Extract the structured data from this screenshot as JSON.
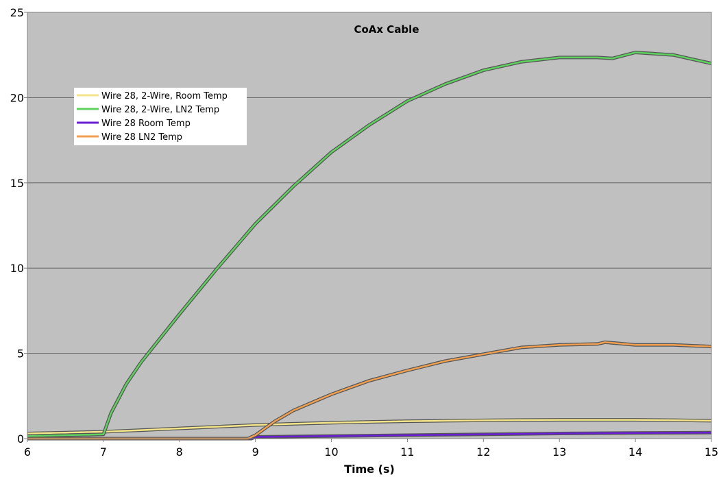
{
  "chart_data": {
    "type": "line",
    "title": "CoAx Cable",
    "xlabel": "Time (s)",
    "ylabel": "",
    "xlim": [
      6,
      15
    ],
    "ylim": [
      0,
      25
    ],
    "x_ticks": [
      6,
      7,
      8,
      9,
      10,
      11,
      12,
      13,
      14,
      15
    ],
    "y_ticks": [
      0,
      5,
      10,
      15,
      20,
      25
    ],
    "grid": "horizontal",
    "legend_placement": "upper-left",
    "plot_background": "#c0c0c0",
    "series": [
      {
        "name": "Wire 28, 2-Wire, Room Temp",
        "color": "#f5e68c",
        "x": [
          6,
          6.5,
          7,
          7.5,
          8,
          8.5,
          9,
          9.5,
          10,
          10.5,
          11,
          11.5,
          12,
          12.5,
          13,
          13.5,
          14,
          14.5,
          15
        ],
        "y": [
          0.3,
          0.35,
          0.4,
          0.5,
          0.6,
          0.7,
          0.8,
          0.87,
          0.93,
          0.98,
          1.02,
          1.05,
          1.07,
          1.09,
          1.1,
          1.1,
          1.1,
          1.08,
          1.05
        ]
      },
      {
        "name": "Wire 28, 2-Wire, LN2 Temp",
        "color": "#5ed15e",
        "x": [
          6,
          6.5,
          7,
          7.1,
          7.3,
          7.5,
          8,
          8.5,
          9,
          9.5,
          10,
          10.5,
          11,
          11.5,
          12,
          12.5,
          13,
          13.5,
          13.7,
          14,
          14.5,
          15
        ],
        "y": [
          0.15,
          0.2,
          0.25,
          1.5,
          3.2,
          4.5,
          7.3,
          10.0,
          12.6,
          14.8,
          16.8,
          18.4,
          19.8,
          20.8,
          21.6,
          22.1,
          22.35,
          22.35,
          22.3,
          22.65,
          22.5,
          22.0
        ]
      },
      {
        "name": "Wire 28 Room Temp",
        "color": "#6a1fd6",
        "x": [
          6,
          8.95,
          9,
          10,
          11,
          12,
          13,
          14,
          15
        ],
        "y": [
          0.0,
          0.0,
          0.1,
          0.15,
          0.2,
          0.25,
          0.3,
          0.33,
          0.35
        ]
      },
      {
        "name": "Wire 28 LN2 Temp",
        "color": "#f0a050",
        "x": [
          6,
          8.9,
          9,
          9.25,
          9.5,
          10,
          10.5,
          11,
          11.5,
          12,
          12.5,
          13,
          13.5,
          13.6,
          14,
          14.5,
          15
        ],
        "y": [
          0.0,
          0.0,
          0.2,
          1.0,
          1.65,
          2.6,
          3.4,
          4.0,
          4.55,
          4.95,
          5.35,
          5.5,
          5.55,
          5.65,
          5.5,
          5.5,
          5.4
        ]
      }
    ]
  }
}
